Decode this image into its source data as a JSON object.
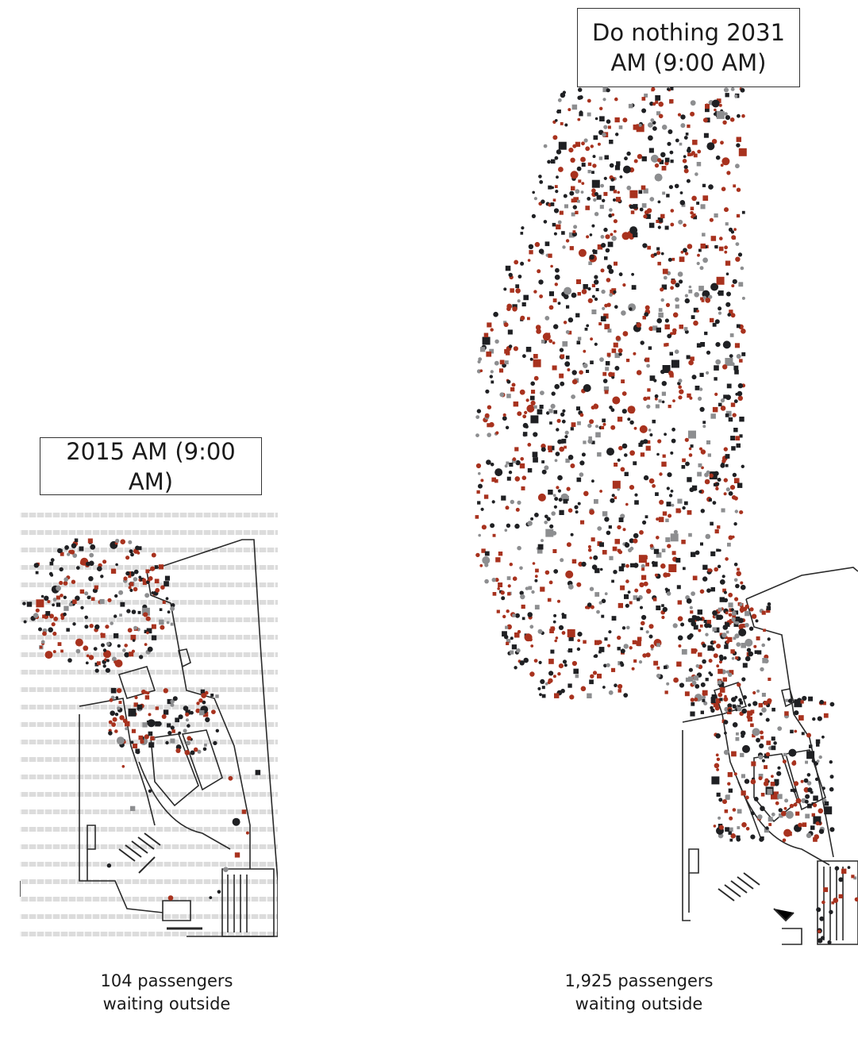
{
  "panels": {
    "left": {
      "title": "2015 AM (9:00 AM)",
      "caption_line1": "104 passengers",
      "caption_line2": "waiting outside",
      "passengers_outside": 104
    },
    "right": {
      "title_line1": "Do nothing 2031",
      "title_line2": "AM (9:00 AM)",
      "caption_line1": "1,925 passengers",
      "caption_line2": "waiting outside",
      "passengers_outside": 1925
    }
  },
  "colors": {
    "dark_dot": "#1f2023",
    "red_dot": "#a8321e",
    "grey_dot": "#8d8e90",
    "plan_line": "#2a2a2a",
    "stripe": "#d8d8d8"
  }
}
